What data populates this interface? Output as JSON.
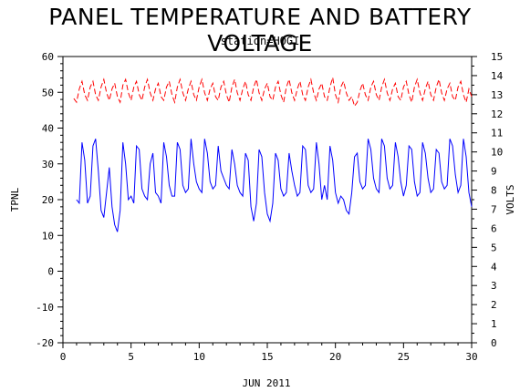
{
  "chart_data": {
    "type": "line",
    "title": "PANEL TEMPERATURE AND BATTERY VOLTAGE",
    "subtitle": "station=HOGI",
    "xlabel": "JUN 2011",
    "xlim": [
      0,
      30
    ],
    "xticks": [
      0,
      5,
      10,
      15,
      20,
      25,
      30
    ],
    "left_axis": {
      "label": "TPNL",
      "ylim": [
        -20,
        60
      ],
      "ticks": [
        -20,
        -10,
        0,
        10,
        20,
        30,
        40,
        50,
        60
      ]
    },
    "right_axis": {
      "label": "VOLTS",
      "ylim": [
        0,
        15
      ],
      "ticks": [
        0,
        1,
        2,
        3,
        4,
        5,
        6,
        7,
        8,
        9,
        10,
        11,
        12,
        13,
        14,
        15
      ]
    },
    "series": [
      {
        "axis": "left",
        "color": "#0000ff",
        "style": "solid",
        "x": [
          1.0,
          1.2,
          1.4,
          1.6,
          1.8,
          2.0,
          2.2,
          2.4,
          2.6,
          2.8,
          3.0,
          3.2,
          3.4,
          3.6,
          3.8,
          4.0,
          4.2,
          4.4,
          4.6,
          4.8,
          5.0,
          5.2,
          5.4,
          5.6,
          5.8,
          6.0,
          6.2,
          6.4,
          6.6,
          6.8,
          7.0,
          7.2,
          7.4,
          7.6,
          7.8,
          8.0,
          8.2,
          8.4,
          8.6,
          8.8,
          9.0,
          9.2,
          9.4,
          9.6,
          9.8,
          10.0,
          10.2,
          10.4,
          10.6,
          10.8,
          11.0,
          11.2,
          11.4,
          11.6,
          11.8,
          12.0,
          12.2,
          12.4,
          12.6,
          12.8,
          13.0,
          13.2,
          13.4,
          13.6,
          13.8,
          14.0,
          14.2,
          14.4,
          14.6,
          14.8,
          15.0,
          15.2,
          15.4,
          15.6,
          15.8,
          16.0,
          16.2,
          16.4,
          16.6,
          16.8,
          17.0,
          17.2,
          17.4,
          17.6,
          17.8,
          18.0,
          18.2,
          18.4,
          18.6,
          18.8,
          19.0,
          19.2,
          19.4,
          19.6,
          19.8,
          20.0,
          20.2,
          20.4,
          20.6,
          20.8,
          21.0,
          21.2,
          21.4,
          21.6,
          21.8,
          22.0,
          22.2,
          22.4,
          22.6,
          22.8,
          23.0,
          23.2,
          23.4,
          23.6,
          23.8,
          24.0,
          24.2,
          24.4,
          24.6,
          24.8,
          25.0,
          25.2,
          25.4,
          25.6,
          25.8,
          26.0,
          26.2,
          26.4,
          26.6,
          26.8,
          27.0,
          27.2,
          27.4,
          27.6,
          27.8,
          28.0,
          28.2,
          28.4,
          28.6,
          28.8,
          29.0,
          29.2,
          29.4,
          29.6,
          29.8,
          30.0
        ],
        "y": [
          20,
          19,
          36,
          31,
          19,
          21,
          35,
          37,
          28,
          17,
          15,
          22,
          29,
          18,
          13,
          11,
          17,
          36,
          30,
          20,
          21,
          19,
          35,
          34,
          23,
          21,
          20,
          30,
          33,
          22,
          21,
          19,
          36,
          32,
          24,
          21,
          21,
          36,
          34,
          24,
          22,
          23,
          37,
          30,
          25,
          23,
          22,
          37,
          33,
          25,
          23,
          24,
          35,
          28,
          26,
          24,
          23,
          34,
          30,
          24,
          22,
          21,
          33,
          31,
          18,
          14,
          19,
          34,
          32,
          22,
          16,
          14,
          19,
          33,
          31,
          23,
          21,
          22,
          33,
          28,
          24,
          21,
          22,
          35,
          34,
          24,
          22,
          23,
          36,
          30,
          20,
          24,
          20,
          35,
          31,
          22,
          19,
          21,
          20,
          17,
          16,
          22,
          32,
          33,
          25,
          23,
          24,
          37,
          34,
          26,
          23,
          22,
          37,
          35,
          26,
          23,
          24,
          36,
          32,
          25,
          21,
          24,
          35,
          34,
          25,
          21,
          22,
          36,
          33,
          26,
          22,
          23,
          34,
          33,
          25,
          23,
          24,
          37,
          35,
          27,
          22,
          24,
          37,
          32,
          22,
          18
        ]
      },
      {
        "axis": "right",
        "color": "#ff0000",
        "style": "dashed",
        "x": [
          0.8,
          1.0,
          1.2,
          1.4,
          1.6,
          1.8,
          2.0,
          2.2,
          2.4,
          2.6,
          2.8,
          3.0,
          3.2,
          3.4,
          3.6,
          3.8,
          4.0,
          4.2,
          4.4,
          4.6,
          4.8,
          5.0,
          5.2,
          5.4,
          5.6,
          5.8,
          6.0,
          6.2,
          6.4,
          6.6,
          6.8,
          7.0,
          7.2,
          7.4,
          7.6,
          7.8,
          8.0,
          8.2,
          8.4,
          8.6,
          8.8,
          9.0,
          9.2,
          9.4,
          9.6,
          9.8,
          10.0,
          10.2,
          10.4,
          10.6,
          10.8,
          11.0,
          11.2,
          11.4,
          11.6,
          11.8,
          12.0,
          12.2,
          12.4,
          12.6,
          12.8,
          13.0,
          13.2,
          13.4,
          13.6,
          13.8,
          14.0,
          14.2,
          14.4,
          14.6,
          14.8,
          15.0,
          15.2,
          15.4,
          15.6,
          15.8,
          16.0,
          16.2,
          16.4,
          16.6,
          16.8,
          17.0,
          17.2,
          17.4,
          17.6,
          17.8,
          18.0,
          18.2,
          18.4,
          18.6,
          18.8,
          19.0,
          19.2,
          19.4,
          19.6,
          19.8,
          20.0,
          20.2,
          20.4,
          20.6,
          20.8,
          21.0,
          21.2,
          21.4,
          21.6,
          21.8,
          22.0,
          22.2,
          22.4,
          22.6,
          22.8,
          23.0,
          23.2,
          23.4,
          23.6,
          23.8,
          24.0,
          24.2,
          24.4,
          24.6,
          24.8,
          25.0,
          25.2,
          25.4,
          25.6,
          25.8,
          26.0,
          26.2,
          26.4,
          26.6,
          26.8,
          27.0,
          27.2,
          27.4,
          27.6,
          27.8,
          28.0,
          28.2,
          28.4,
          28.6,
          28.8,
          29.0,
          29.2,
          29.4,
          29.6,
          29.8,
          30.0
        ],
        "y": [
          12.8,
          12.6,
          13.3,
          13.7,
          13.0,
          12.7,
          13.4,
          13.7,
          13.0,
          12.7,
          13.4,
          13.8,
          13.1,
          12.7,
          13.3,
          13.6,
          12.9,
          12.6,
          13.5,
          13.8,
          13.1,
          12.7,
          13.4,
          13.7,
          13.0,
          12.7,
          13.4,
          13.8,
          13.1,
          12.7,
          13.3,
          13.6,
          12.9,
          12.7,
          13.4,
          13.7,
          13.0,
          12.6,
          13.4,
          13.8,
          13.1,
          12.7,
          13.3,
          13.7,
          13.0,
          12.7,
          13.4,
          13.8,
          13.1,
          12.7,
          13.3,
          13.6,
          12.9,
          12.7,
          13.4,
          13.7,
          13.0,
          12.6,
          13.4,
          13.8,
          13.1,
          12.7,
          13.3,
          13.7,
          13.0,
          12.7,
          13.4,
          13.8,
          13.1,
          12.7,
          13.3,
          13.6,
          12.9,
          12.7,
          13.4,
          13.7,
          13.0,
          12.6,
          13.4,
          13.8,
          13.1,
          12.7,
          13.3,
          13.7,
          13.0,
          12.7,
          13.4,
          13.8,
          13.1,
          12.7,
          13.3,
          13.6,
          12.9,
          12.7,
          13.4,
          13.9,
          13.0,
          12.6,
          13.4,
          13.7,
          13.1,
          12.7,
          12.9,
          12.4,
          12.6,
          13.2,
          13.6,
          13.0,
          12.7,
          13.4,
          13.7,
          13.0,
          12.7,
          13.4,
          13.8,
          13.1,
          12.7,
          13.3,
          13.6,
          12.9,
          12.7,
          13.4,
          13.7,
          13.0,
          12.6,
          13.4,
          13.8,
          13.1,
          12.7,
          13.3,
          13.7,
          13.0,
          12.7,
          13.4,
          13.8,
          13.1,
          12.7,
          13.3,
          13.6,
          12.9,
          12.7,
          13.4,
          13.7,
          13.0,
          12.6,
          13.3,
          12.9
        ]
      }
    ],
    "grid": false
  }
}
